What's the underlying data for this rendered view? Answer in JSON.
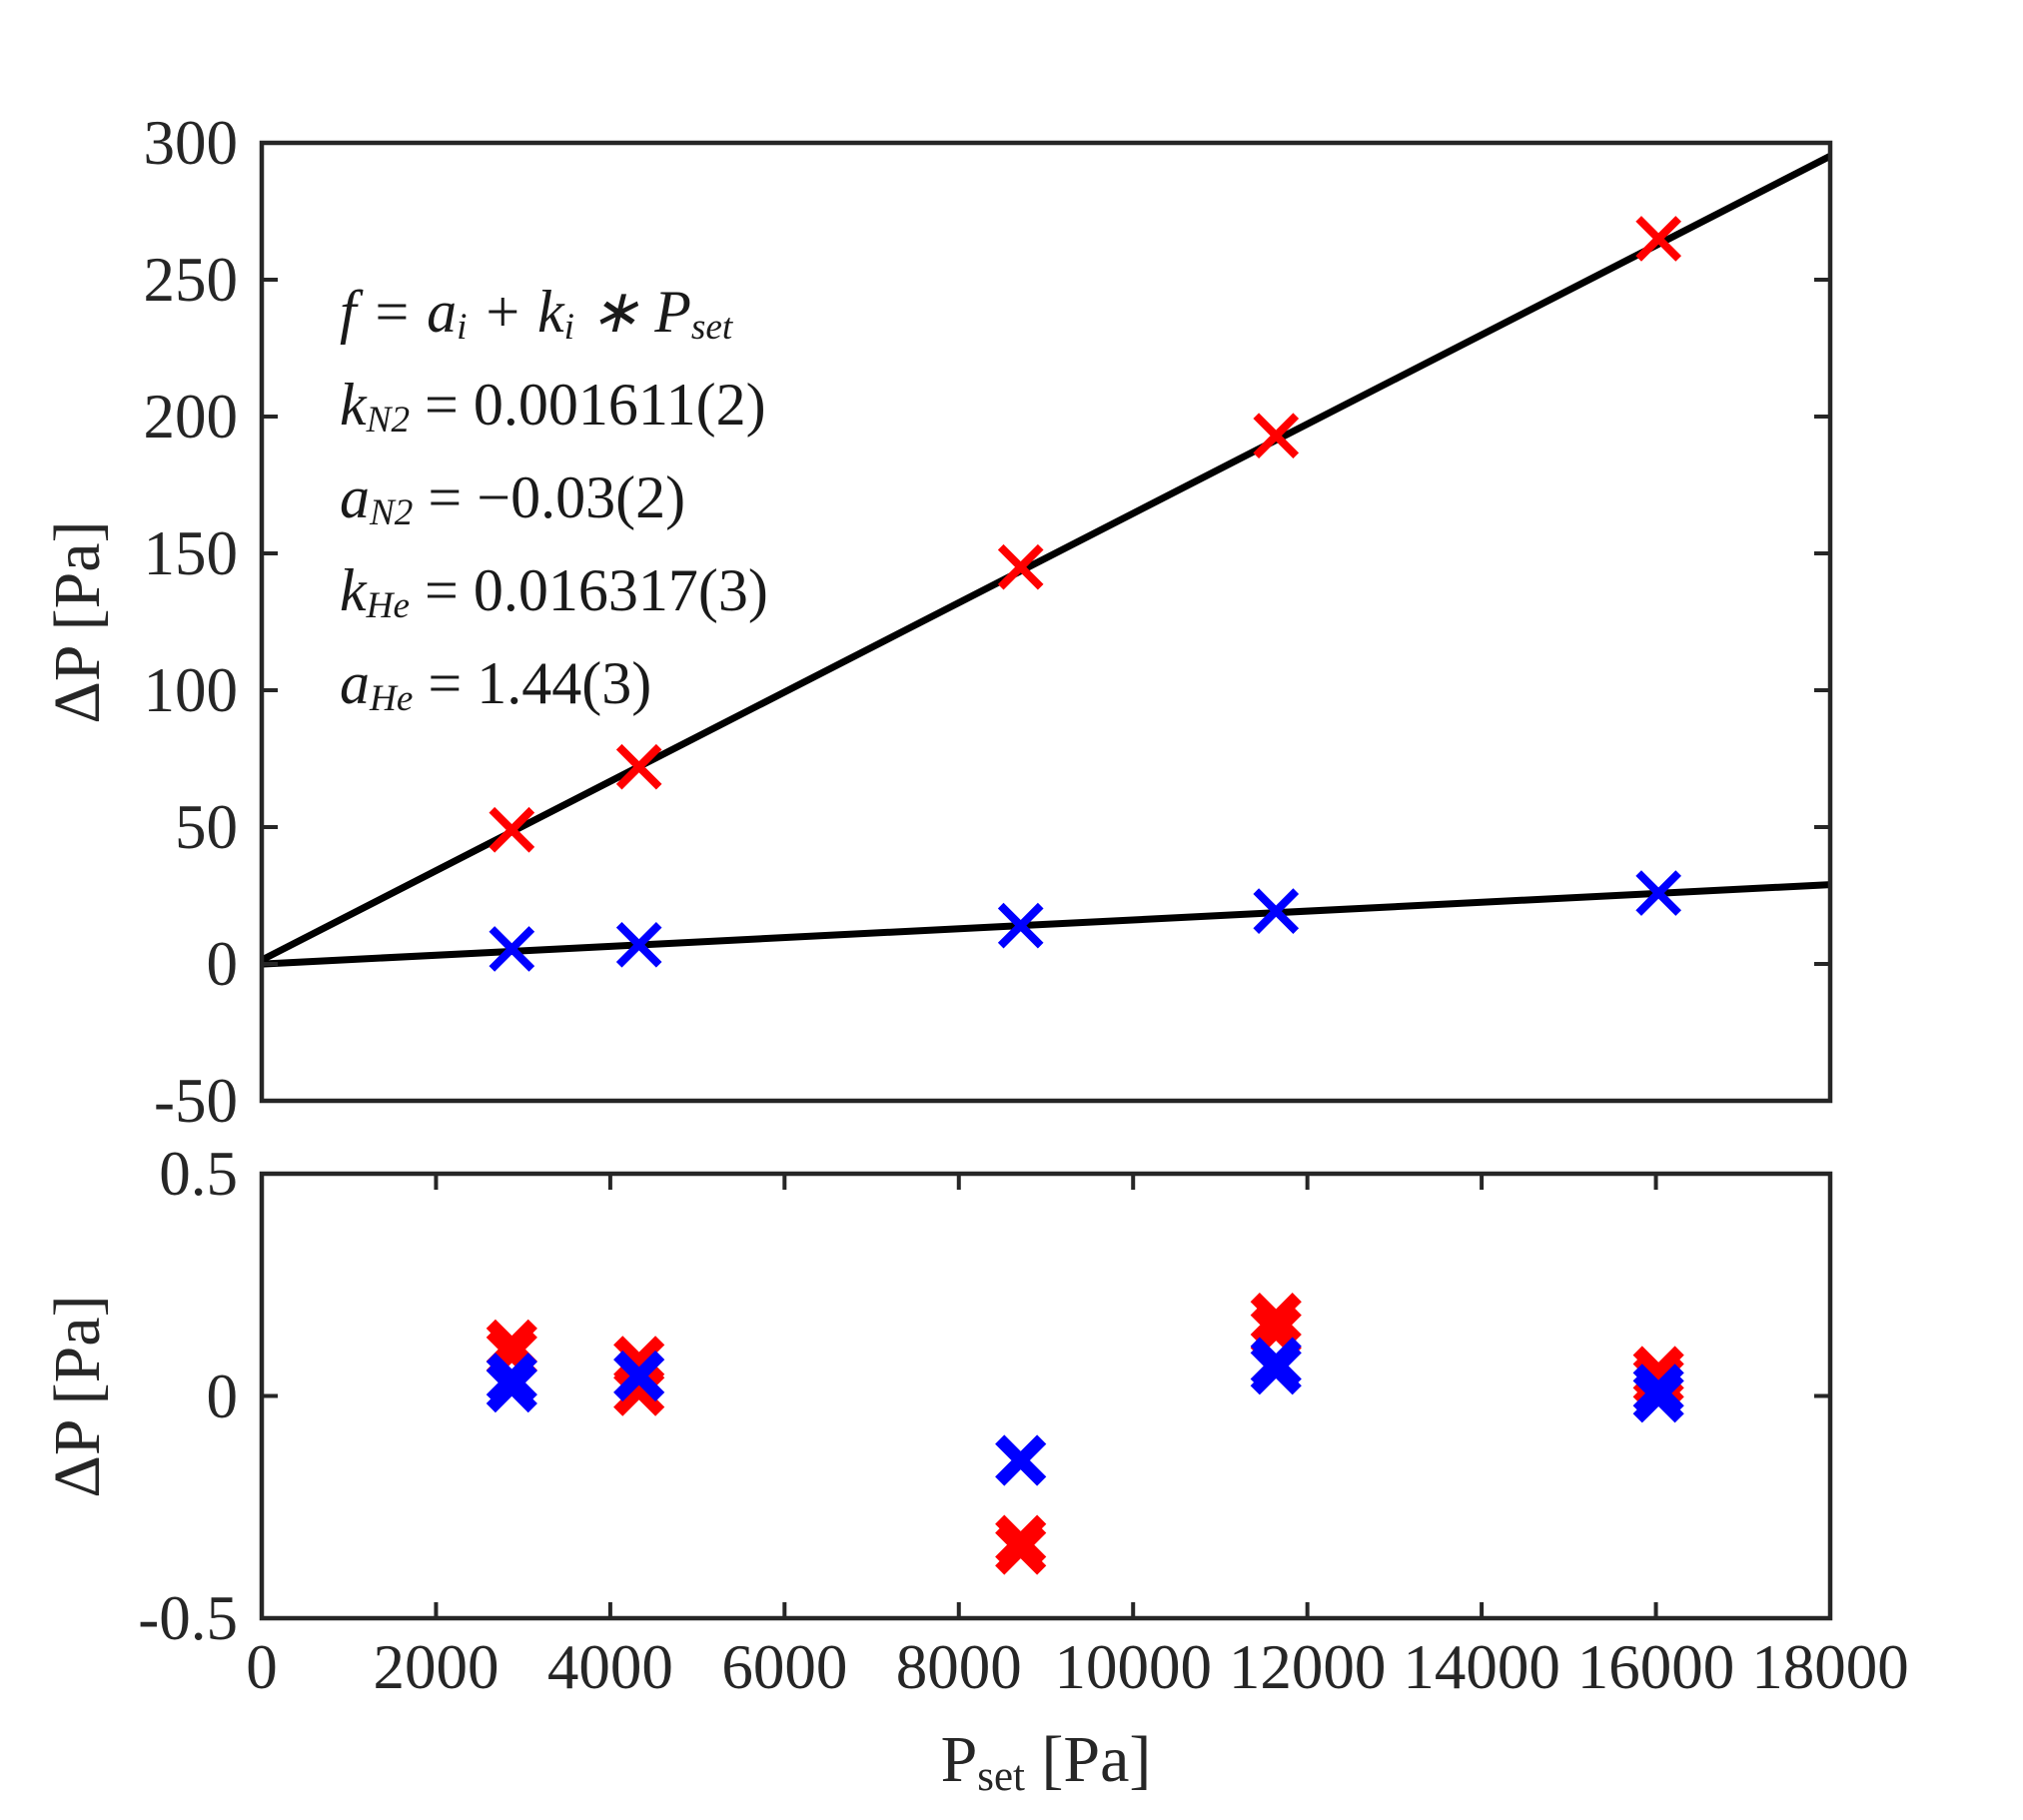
{
  "figure": {
    "background": "#ffffff",
    "axis_color": "#262626",
    "marker_color_he": "#ff0000",
    "marker_color_n2": "#0000ff",
    "xlabel": {
      "pre": "P",
      "sub": "set",
      "post": " [Pa]"
    }
  },
  "chart_data": [
    {
      "id": "calibration",
      "type": "scatter",
      "title": "",
      "ylabel": "ΔP [Pa]",
      "xlabel": "",
      "xlim": [
        0,
        18000
      ],
      "ylim": [
        -50,
        300
      ],
      "grid": false,
      "legend": "none",
      "xticks": [],
      "xtick_labels": [],
      "yticks": [
        -50,
        0,
        50,
        100,
        150,
        200,
        250,
        300
      ],
      "ytick_labels": [
        "-50",
        "0",
        "50",
        "100",
        "150",
        "200",
        "250",
        "300"
      ],
      "series": [
        {
          "name": "he-fit-line",
          "kind": "line",
          "color": "#000000",
          "x": [
            0,
            18000
          ],
          "y": [
            1.44,
            295.15
          ]
        },
        {
          "name": "n2-fit-line",
          "kind": "line",
          "color": "#000000",
          "x": [
            0,
            18000
          ],
          "y": [
            -0.03,
            28.97
          ]
        },
        {
          "name": "he-data",
          "kind": "scatter",
          "marker": "x",
          "color": "#ff0000",
          "x": [
            2870,
            4330,
            8710,
            11640,
            16030
          ],
          "y": [
            49,
            72,
            145,
            193,
            265
          ]
        },
        {
          "name": "n2-data",
          "kind": "scatter",
          "marker": "x",
          "color": "#0000ff",
          "x": [
            2870,
            4330,
            8710,
            11640,
            16030
          ],
          "y": [
            5.5,
            7,
            14,
            19.3,
            25.9
          ]
        }
      ],
      "annotation": {
        "lines": [
          [
            {
              "t": "f = a"
            },
            {
              "sub": "i"
            },
            {
              "t": " + k"
            },
            {
              "sub": "i"
            },
            {
              "t": " ∗ P"
            },
            {
              "sub": "set"
            }
          ],
          [
            {
              "t": "k"
            },
            {
              "sub": "N2"
            },
            {
              "t": " = 0.001611(2)",
              "roman": true
            }
          ],
          [
            {
              "t": "a"
            },
            {
              "sub": "N2"
            },
            {
              "t": " = −0.03(2)",
              "roman": true
            }
          ],
          [
            {
              "t": "k"
            },
            {
              "sub": "He"
            },
            {
              "t": " = 0.016317(3)",
              "roman": true
            }
          ],
          [
            {
              "t": "a"
            },
            {
              "sub": "He"
            },
            {
              "t": " = 1.44(3)",
              "roman": true
            }
          ]
        ]
      }
    },
    {
      "id": "residuals",
      "type": "scatter",
      "title": "",
      "ylabel": "ΔP [Pa]",
      "xlim": [
        0,
        18000
      ],
      "ylim": [
        -0.5,
        0.5
      ],
      "grid": false,
      "legend": "none",
      "xticks": [
        0,
        2000,
        4000,
        6000,
        8000,
        10000,
        12000,
        14000,
        16000,
        18000
      ],
      "xtick_labels": [
        "0",
        "2000",
        "4000",
        "6000",
        "8000",
        "10000",
        "12000",
        "14000",
        "16000",
        "18000"
      ],
      "yticks": [
        -0.5,
        0,
        0.5
      ],
      "ytick_labels": [
        "-0.5",
        "0",
        "0.5"
      ],
      "series": [
        {
          "name": "he-residuals",
          "kind": "scatter",
          "marker": "x",
          "color": "#ff0000",
          "x": [
            2870,
            2870,
            4330,
            4330,
            8710,
            8710,
            11640,
            11640,
            16030,
            16030
          ],
          "y": [
            0.115,
            0.095,
            0.078,
            0.012,
            -0.325,
            -0.345,
            0.175,
            0.145,
            0.055,
            0.035
          ]
        },
        {
          "name": "n2-residuals",
          "kind": "scatter",
          "marker": "x",
          "color": "#0000ff",
          "x": [
            2870,
            2870,
            4330,
            8710,
            11640,
            11640,
            16030,
            16030
          ],
          "y": [
            0.04,
            0.02,
            0.045,
            -0.145,
            0.075,
            0.06,
            0.015,
            -0.003
          ]
        }
      ]
    }
  ]
}
